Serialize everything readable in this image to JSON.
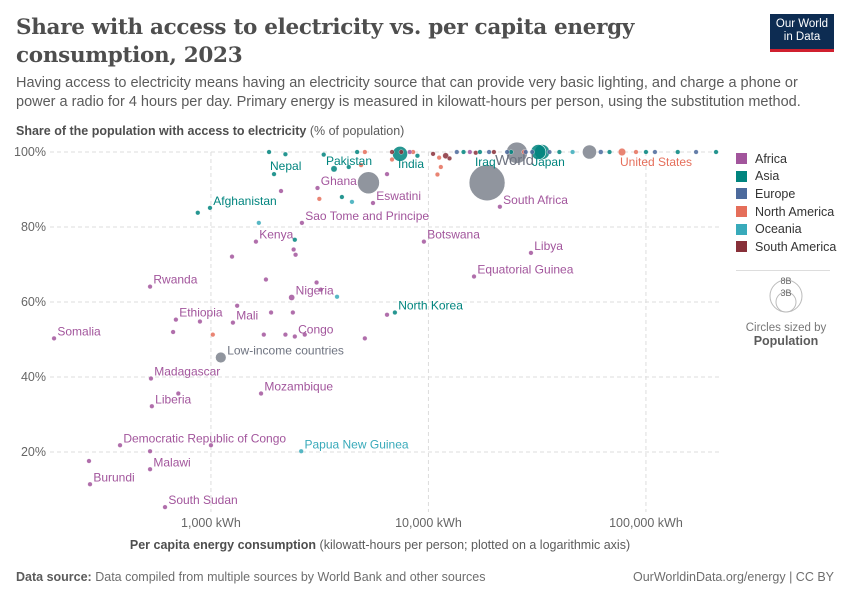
{
  "header": {
    "title": "Share with access to electricity vs. per capita energy consumption, 2023",
    "subtitle": "Having access to electricity means having an electricity source that can provide very basic lighting, and charge a phone or power a radio for 4 hours per day. Primary energy is measured in kilowatt-hours per person, using the substitution method.",
    "logo": "Our World in Data"
  },
  "footer": {
    "source_label": "Data source:",
    "source_text": "Data compiled from multiple sources by World Bank and other sources",
    "credit": "OurWorldinData.org/energy | CC BY"
  },
  "legend": {
    "items": [
      {
        "label": "Africa",
        "color": "#a2559c"
      },
      {
        "label": "Asia",
        "color": "#00847e"
      },
      {
        "label": "Europe",
        "color": "#4c6a9c"
      },
      {
        "label": "North America",
        "color": "#e56e5a"
      },
      {
        "label": "Oceania",
        "color": "#38aaba"
      },
      {
        "label": "South America",
        "color": "#883039"
      }
    ],
    "size_big": "8B",
    "size_small": "3B",
    "size_caption": "Circles sized by",
    "size_variable": "Population"
  },
  "chart_data": {
    "type": "scatter",
    "ylabel_bold": "Share of the population with access to electricity",
    "ylabel_unit": "(% of population)",
    "xlabel_bold": "Per capita energy consumption",
    "xlabel_unit": "(kilowatt-hours per person; plotted on a logarithmic axis)",
    "x_scale": "log",
    "xlim": [
      182,
      219000
    ],
    "ylim": [
      4,
      100
    ],
    "x_ticks": [
      {
        "v": 1000,
        "label": "1,000 kWh"
      },
      {
        "v": 10000,
        "label": "10,000 kWh"
      },
      {
        "v": 100000,
        "label": "100,000 kWh"
      }
    ],
    "y_ticks": [
      {
        "v": 20,
        "label": "20%"
      },
      {
        "v": 40,
        "label": "40%"
      },
      {
        "v": 60,
        "label": "60%"
      },
      {
        "v": 80,
        "label": "80%"
      },
      {
        "v": 100,
        "label": "100%"
      }
    ],
    "grid": true,
    "legend_position": "right",
    "region_colors": {
      "Africa": "#a2559c",
      "Asia": "#00847e",
      "Europe": "#4c6a9c",
      "North America": "#e56e5a",
      "Oceania": "#38aaba",
      "South America": "#883039",
      "Aggregate": "#8a8f99"
    },
    "points": [
      {
        "label": "World",
        "region": "Aggregate",
        "x": 18600,
        "y": 91.8,
        "pop": 8000
      },
      {
        "label": "",
        "region": "Aggregate",
        "x": 25500,
        "y": 99.8,
        "pop": 2800
      },
      {
        "label": "",
        "region": "Aggregate",
        "x": 5300,
        "y": 91.8,
        "pop": 3000
      },
      {
        "label": "",
        "region": "Aggregate",
        "x": 55000,
        "y": 100,
        "pop": 1250
      },
      {
        "label": "Low-income countries",
        "region": "Aggregate",
        "x": 1110,
        "y": 45.2,
        "pop": 720
      },
      {
        "label": "Somalia",
        "region": "Africa",
        "x": 190,
        "y": 50.3,
        "pop": 18
      },
      {
        "label": "Rwanda",
        "region": "Africa",
        "x": 525,
        "y": 64.1,
        "pop": 14
      },
      {
        "label": "Ethiopia",
        "region": "Africa",
        "x": 690,
        "y": 55.3,
        "pop": 126
      },
      {
        "label": "Mali",
        "region": "Africa",
        "x": 1262,
        "y": 54.5,
        "pop": 23
      },
      {
        "label": "Congo",
        "region": "Africa",
        "x": 2430,
        "y": 50.8,
        "pop": 6
      },
      {
        "label": "Madagascar",
        "region": "Africa",
        "x": 530,
        "y": 39.6,
        "pop": 31
      },
      {
        "label": "Liberia",
        "region": "Africa",
        "x": 535,
        "y": 32.2,
        "pop": 5
      },
      {
        "label": "Mozambique",
        "region": "Africa",
        "x": 1700,
        "y": 35.6,
        "pop": 34
      },
      {
        "label": "Democratic Republic of Congo",
        "region": "Africa",
        "x": 382,
        "y": 21.8,
        "pop": 105
      },
      {
        "label": "Malawi",
        "region": "Africa",
        "x": 525,
        "y": 15.4,
        "pop": 21
      },
      {
        "label": "Burundi",
        "region": "Africa",
        "x": 278,
        "y": 11.4,
        "pop": 13
      },
      {
        "label": "South Sudan",
        "region": "Africa",
        "x": 615,
        "y": 5.3,
        "pop": 11
      },
      {
        "label": "Papua New Guinea",
        "region": "Oceania",
        "x": 2600,
        "y": 20.2,
        "pop": 10
      },
      {
        "label": "Kenya",
        "region": "Africa",
        "x": 1610,
        "y": 76.1,
        "pop": 55
      },
      {
        "label": "Nigeria",
        "region": "Africa",
        "x": 2350,
        "y": 61.2,
        "pop": 228
      },
      {
        "label": "Sao Tome and Principe",
        "region": "Africa",
        "x": 2620,
        "y": 81.1,
        "pop": 0.2
      },
      {
        "label": "Afghanistan",
        "region": "Asia",
        "x": 990,
        "y": 85.1,
        "pop": 42
      },
      {
        "label": "Nepal",
        "region": "Asia",
        "x": 1950,
        "y": 94.1,
        "pop": 30
      },
      {
        "label": "Pakistan",
        "region": "Asia",
        "x": 3680,
        "y": 95.5,
        "pop": 240
      },
      {
        "label": "Ghana",
        "region": "Africa",
        "x": 3090,
        "y": 90.4,
        "pop": 34
      },
      {
        "label": "Eswatini",
        "region": "Africa",
        "x": 5560,
        "y": 86.4,
        "pop": 1.2
      },
      {
        "label": "India",
        "region": "Asia",
        "x": 7400,
        "y": 99.5,
        "pop": 1430
      },
      {
        "label": "Iraq",
        "region": "Asia",
        "x": 17250,
        "y": 100,
        "pop": 45
      },
      {
        "label": "South Africa",
        "region": "Africa",
        "x": 21300,
        "y": 85.4,
        "pop": 63
      },
      {
        "label": "Japan",
        "region": "Asia",
        "x": 33300,
        "y": 100,
        "pop": 1420
      },
      {
        "label": "United States",
        "region": "North America",
        "x": 77600,
        "y": 100,
        "pop": 340
      },
      {
        "label": "Botswana",
        "region": "Africa",
        "x": 9530,
        "y": 76.1,
        "pop": 2.5
      },
      {
        "label": "Libya",
        "region": "Africa",
        "x": 29600,
        "y": 73.1,
        "pop": 7
      },
      {
        "label": "Equatorial Guinea",
        "region": "Africa",
        "x": 16200,
        "y": 66.8,
        "pop": 1.7
      },
      {
        "label": "North Korea",
        "region": "Asia",
        "x": 7010,
        "y": 57.2,
        "pop": 26
      },
      {
        "label": "",
        "region": "Asia",
        "x": 870,
        "y": 83.8,
        "pop": 54
      },
      {
        "label": "",
        "region": "Africa",
        "x": 2100,
        "y": 89.6,
        "pop": 8
      },
      {
        "label": "",
        "region": "North America",
        "x": 3150,
        "y": 87.5,
        "pop": 11
      },
      {
        "label": "",
        "region": "Asia",
        "x": 4000,
        "y": 88,
        "pop": 8
      },
      {
        "label": "",
        "region": "Oceania",
        "x": 4450,
        "y": 86.7,
        "pop": 0.7
      },
      {
        "label": "",
        "region": "Africa",
        "x": 6450,
        "y": 94.1,
        "pop": 17
      },
      {
        "label": "",
        "region": "Oceania",
        "x": 1660,
        "y": 81.1,
        "pop": 0.7
      },
      {
        "label": "",
        "region": "Asia",
        "x": 2430,
        "y": 76.6,
        "pop": 7
      },
      {
        "label": "",
        "region": "Africa",
        "x": 2400,
        "y": 74,
        "pop": 17
      },
      {
        "label": "",
        "region": "Africa",
        "x": 2450,
        "y": 72.6,
        "pop": 28
      },
      {
        "label": "",
        "region": "Africa",
        "x": 1250,
        "y": 72.1,
        "pop": 18
      },
      {
        "label": "",
        "region": "Africa",
        "x": 1790,
        "y": 66,
        "pop": 9
      },
      {
        "label": "",
        "region": "Africa",
        "x": 3060,
        "y": 65.2,
        "pop": 29
      },
      {
        "label": "",
        "region": "Africa",
        "x": 3200,
        "y": 63.3,
        "pop": 5
      },
      {
        "label": "",
        "region": "Oceania",
        "x": 3800,
        "y": 61.4,
        "pop": 0.7
      },
      {
        "label": "",
        "region": "Africa",
        "x": 1320,
        "y": 59,
        "pop": 2
      },
      {
        "label": "",
        "region": "Africa",
        "x": 1890,
        "y": 57.2,
        "pop": 18
      },
      {
        "label": "",
        "region": "Africa",
        "x": 2380,
        "y": 57.2,
        "pop": 28
      },
      {
        "label": "",
        "region": "Africa",
        "x": 6450,
        "y": 56.6,
        "pop": 2.4
      },
      {
        "label": "",
        "region": "Africa",
        "x": 890,
        "y": 54.8,
        "pop": 12
      },
      {
        "label": "",
        "region": "Africa",
        "x": 670,
        "y": 52,
        "pop": 17
      },
      {
        "label": "",
        "region": "North America",
        "x": 1020,
        "y": 51.3,
        "pop": 11.7
      },
      {
        "label": "",
        "region": "Africa",
        "x": 1750,
        "y": 51.3,
        "pop": 8
      },
      {
        "label": "",
        "region": "Africa",
        "x": 2200,
        "y": 51.3,
        "pop": 19
      },
      {
        "label": "",
        "region": "Africa",
        "x": 2700,
        "y": 51.3,
        "pop": 2.7
      },
      {
        "label": "",
        "region": "Africa",
        "x": 5100,
        "y": 50.3,
        "pop": 68
      },
      {
        "label": "",
        "region": "Africa",
        "x": 708,
        "y": 35.6,
        "pop": 8
      },
      {
        "label": "",
        "region": "Africa",
        "x": 1000,
        "y": 21.8,
        "pop": 28
      },
      {
        "label": "",
        "region": "Africa",
        "x": 275,
        "y": 17.6,
        "pop": 19
      },
      {
        "label": "",
        "region": "Africa",
        "x": 525,
        "y": 20.2,
        "pop": 27
      },
      {
        "label": "",
        "region": "Asia",
        "x": 1850,
        "y": 100,
        "pop": 2
      },
      {
        "label": "",
        "region": "Asia",
        "x": 2200,
        "y": 99.4,
        "pop": 98
      },
      {
        "label": "",
        "region": "Asia",
        "x": 3300,
        "y": 99.3,
        "pop": 17
      },
      {
        "label": "",
        "region": "Asia",
        "x": 4300,
        "y": 96,
        "pop": 35
      },
      {
        "label": "",
        "region": "North America",
        "x": 4900,
        "y": 96.5,
        "pop": 10
      },
      {
        "label": "",
        "region": "Asia",
        "x": 4700,
        "y": 100,
        "pop": 6
      },
      {
        "label": "",
        "region": "North America",
        "x": 5100,
        "y": 100,
        "pop": 6
      },
      {
        "label": "",
        "region": "South America",
        "x": 6800,
        "y": 100,
        "pop": 7
      },
      {
        "label": "",
        "region": "North America",
        "x": 6800,
        "y": 98,
        "pop": 11
      },
      {
        "label": "",
        "region": "South America",
        "x": 7500,
        "y": 100,
        "pop": 12
      },
      {
        "label": "",
        "region": "North America",
        "x": 8500,
        "y": 100,
        "pop": 4
      },
      {
        "label": "",
        "region": "Africa",
        "x": 8200,
        "y": 100,
        "pop": 3
      },
      {
        "label": "",
        "region": "Asia",
        "x": 8900,
        "y": 99,
        "pop": 120
      },
      {
        "label": "",
        "region": "South America",
        "x": 10500,
        "y": 99.5,
        "pop": 34
      },
      {
        "label": "",
        "region": "North America",
        "x": 11200,
        "y": 98.5,
        "pop": 6
      },
      {
        "label": "",
        "region": "South America",
        "x": 12000,
        "y": 99,
        "pop": 216
      },
      {
        "label": "",
        "region": "North America",
        "x": 11400,
        "y": 96,
        "pop": 10
      },
      {
        "label": "",
        "region": "South America",
        "x": 12500,
        "y": 98.3,
        "pop": 18
      },
      {
        "label": "",
        "region": "North America",
        "x": 11000,
        "y": 94,
        "pop": 7
      },
      {
        "label": "",
        "region": "Europe",
        "x": 13500,
        "y": 100,
        "pop": 3
      },
      {
        "label": "",
        "region": "Asia",
        "x": 14500,
        "y": 100,
        "pop": 98
      },
      {
        "label": "",
        "region": "Africa",
        "x": 15500,
        "y": 100,
        "pop": 106
      },
      {
        "label": "",
        "region": "South America",
        "x": 16500,
        "y": 99.8,
        "pop": 46
      },
      {
        "label": "",
        "region": "Europe",
        "x": 19000,
        "y": 100,
        "pop": 37
      },
      {
        "label": "",
        "region": "South America",
        "x": 20000,
        "y": 100,
        "pop": 19
      },
      {
        "label": "",
        "region": "Europe",
        "x": 23000,
        "y": 100,
        "pop": 85
      },
      {
        "label": "",
        "region": "Asia",
        "x": 24000,
        "y": 100,
        "pop": 89
      },
      {
        "label": "",
        "region": "Europe",
        "x": 28000,
        "y": 100,
        "pop": 59
      },
      {
        "label": "",
        "region": "North America",
        "x": 27500,
        "y": 100,
        "pop": 128
      },
      {
        "label": "",
        "region": "Europe",
        "x": 30000,
        "y": 100,
        "pop": 68
      },
      {
        "label": "",
        "region": "Asia",
        "x": 32000,
        "y": 100,
        "pop": 1410
      },
      {
        "label": "",
        "region": "Europe",
        "x": 36000,
        "y": 100,
        "pop": 84
      },
      {
        "label": "",
        "region": "Asia",
        "x": 40000,
        "y": 100,
        "pop": 20
      },
      {
        "label": "",
        "region": "Oceania",
        "x": 46000,
        "y": 100,
        "pop": 5
      },
      {
        "label": "",
        "region": "Europe",
        "x": 62000,
        "y": 100,
        "pop": 144
      },
      {
        "label": "",
        "region": "Asia",
        "x": 68000,
        "y": 100,
        "pop": 36
      },
      {
        "label": "",
        "region": "North America",
        "x": 90000,
        "y": 100,
        "pop": 39
      },
      {
        "label": "",
        "region": "Asia",
        "x": 100000,
        "y": 100,
        "pop": 10
      },
      {
        "label": "",
        "region": "Europe",
        "x": 110000,
        "y": 100,
        "pop": 5
      },
      {
        "label": "",
        "region": "Asia",
        "x": 140000,
        "y": 100,
        "pop": 4
      },
      {
        "label": "",
        "region": "Europe",
        "x": 170000,
        "y": 100,
        "pop": 0.4
      },
      {
        "label": "",
        "region": "Asia",
        "x": 210000,
        "y": 100,
        "pop": 2.7
      }
    ]
  }
}
